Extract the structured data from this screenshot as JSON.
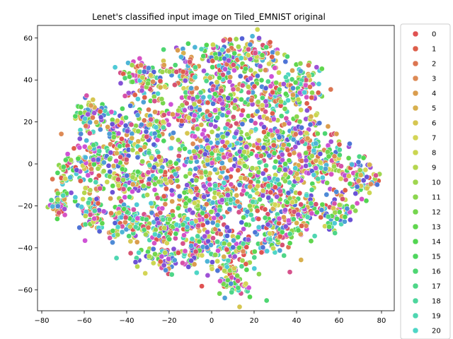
{
  "chart_data": {
    "type": "scatter",
    "title": "Lenet's classified input image on Tiled_EMNIST original",
    "xlabel": "",
    "ylabel": "",
    "xlim": [
      -82,
      86
    ],
    "ylim": [
      -70,
      66
    ],
    "x_ticks": [
      -80,
      -60,
      -40,
      -20,
      0,
      20,
      40,
      60,
      80
    ],
    "y_ticks": [
      -60,
      -40,
      -20,
      0,
      20,
      40,
      60
    ],
    "x_tick_labels": [
      "−80",
      "−60",
      "−40",
      "−20",
      "0",
      "20",
      "40",
      "60",
      "80"
    ],
    "y_tick_labels": [
      "−60",
      "−40",
      "−20",
      "0",
      "20",
      "40",
      "60"
    ],
    "grid": false,
    "legend_position": "outside-right",
    "legend": {
      "entries": [
        "0",
        "1",
        "2",
        "3",
        "4",
        "5",
        "6",
        "7",
        "8",
        "9",
        "10",
        "11",
        "12",
        "13",
        "14",
        "15",
        "16",
        "17",
        "18",
        "19",
        "20"
      ],
      "colors": [
        "#e05252",
        "#dd5e4a",
        "#dc7551",
        "#dd8a55",
        "#da9d4e",
        "#d8b04e",
        "#d6c650",
        "#d4d556",
        "#cbd650",
        "#b5d64e",
        "#9fd64e",
        "#8bd64e",
        "#75d64e",
        "#60d64e",
        "#52d651",
        "#4ed65e",
        "#4ed672",
        "#4ed688",
        "#4ed69d",
        "#4ed6b1",
        "#4ed6c6"
      ]
    },
    "series_colors": [
      "#e05252",
      "#dd5e4a",
      "#dc7551",
      "#dd8a55",
      "#da9d4e",
      "#d8b04e",
      "#d6c650",
      "#d4d556",
      "#cbd650",
      "#b5d64e",
      "#9fd64e",
      "#8bd64e",
      "#75d64e",
      "#60d64e",
      "#52d651",
      "#4ed65e",
      "#4ed672",
      "#4ed688",
      "#4ed69d",
      "#4ed6b1",
      "#4ed6c6",
      "#4ecad6",
      "#4eb5d6",
      "#4ea0d6",
      "#4e8ad6",
      "#4e74d6",
      "#5461d6",
      "#6a52d6",
      "#8452d6",
      "#9f52d6",
      "#b852d6",
      "#cf52d6",
      "#d652c4",
      "#d652a8",
      "#d6528c",
      "#d65270"
    ],
    "clusters": [
      {
        "cx": -72,
        "cy": -19,
        "sx": 2.5,
        "sy": 3,
        "n": 40
      },
      {
        "cx": -69,
        "cy": -5,
        "sx": 2,
        "sy": 4,
        "n": 35
      },
      {
        "cx": -56,
        "cy": -22,
        "sx": 4,
        "sy": 6,
        "n": 80
      },
      {
        "cx": -58,
        "cy": 2,
        "sx": 5,
        "sy": 6,
        "n": 90
      },
      {
        "cx": -58,
        "cy": 22,
        "sx": 4,
        "sy": 5,
        "n": 70
      },
      {
        "cx": -45,
        "cy": 12,
        "sx": 5,
        "sy": 6,
        "n": 80
      },
      {
        "cx": -42,
        "cy": -7,
        "sx": 6,
        "sy": 8,
        "n": 100
      },
      {
        "cx": -38,
        "cy": -28,
        "sx": 6,
        "sy": 5,
        "n": 90
      },
      {
        "cx": -32,
        "cy": 40,
        "sx": 6,
        "sy": 5,
        "n": 90
      },
      {
        "cx": -28,
        "cy": 18,
        "sx": 6,
        "sy": 6,
        "n": 100
      },
      {
        "cx": -25,
        "cy": -5,
        "sx": 6,
        "sy": 7,
        "n": 100
      },
      {
        "cx": -22,
        "cy": -30,
        "sx": 6,
        "sy": 5,
        "n": 100
      },
      {
        "cx": -20,
        "cy": -45,
        "sx": 6,
        "sy": 3,
        "n": 60
      },
      {
        "cx": -12,
        "cy": 45,
        "sx": 5,
        "sy": 6,
        "n": 80
      },
      {
        "cx": -8,
        "cy": 25,
        "sx": 6,
        "sy": 6,
        "n": 100
      },
      {
        "cx": -5,
        "cy": 2,
        "sx": 6,
        "sy": 7,
        "n": 110
      },
      {
        "cx": -8,
        "cy": -20,
        "sx": 6,
        "sy": 6,
        "n": 100
      },
      {
        "cx": -5,
        "cy": -38,
        "sx": 5,
        "sy": 6,
        "n": 80
      },
      {
        "cx": 5,
        "cy": 50,
        "sx": 6,
        "sy": 5,
        "n": 90
      },
      {
        "cx": 8,
        "cy": 30,
        "sx": 6,
        "sy": 6,
        "n": 100
      },
      {
        "cx": 10,
        "cy": 8,
        "sx": 6,
        "sy": 7,
        "n": 110
      },
      {
        "cx": 8,
        "cy": -15,
        "sx": 6,
        "sy": 7,
        "n": 110
      },
      {
        "cx": 10,
        "cy": -40,
        "sx": 6,
        "sy": 6,
        "n": 100
      },
      {
        "cx": 10,
        "cy": -56,
        "sx": 5,
        "sy": 4,
        "n": 60
      },
      {
        "cx": 22,
        "cy": 52,
        "sx": 6,
        "sy": 5,
        "n": 80
      },
      {
        "cx": 28,
        "cy": 32,
        "sx": 6,
        "sy": 6,
        "n": 90
      },
      {
        "cx": 30,
        "cy": 10,
        "sx": 7,
        "sy": 6,
        "n": 100
      },
      {
        "cx": 26,
        "cy": -10,
        "sx": 6,
        "sy": 7,
        "n": 100
      },
      {
        "cx": 28,
        "cy": -32,
        "sx": 6,
        "sy": 7,
        "n": 100
      },
      {
        "cx": 42,
        "cy": 36,
        "sx": 5,
        "sy": 6,
        "n": 80
      },
      {
        "cx": 44,
        "cy": 15,
        "sx": 5,
        "sy": 6,
        "n": 70
      },
      {
        "cx": 42,
        "cy": -5,
        "sx": 6,
        "sy": 6,
        "n": 90
      },
      {
        "cx": 42,
        "cy": -24,
        "sx": 5,
        "sy": 6,
        "n": 80
      },
      {
        "cx": 56,
        "cy": 2,
        "sx": 5,
        "sy": 5,
        "n": 70
      },
      {
        "cx": 58,
        "cy": -22,
        "sx": 5,
        "sy": 5,
        "n": 70
      },
      {
        "cx": 70,
        "cy": -6,
        "sx": 4,
        "sy": 5,
        "n": 70
      }
    ]
  }
}
